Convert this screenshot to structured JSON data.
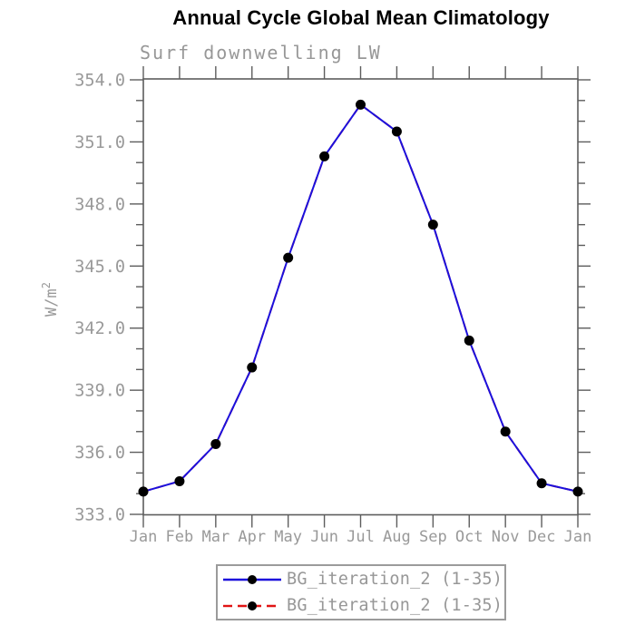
{
  "chart_data": {
    "type": "line",
    "title": "Annual Cycle Global Mean Climatology",
    "subtitle": "Surf downwelling LW",
    "ylabel": "W/m2",
    "ylabel_parts": {
      "base": "W/m",
      "exp": "2"
    },
    "categories": [
      "Jan",
      "Feb",
      "Mar",
      "Apr",
      "May",
      "Jun",
      "Jul",
      "Aug",
      "Sep",
      "Oct",
      "Nov",
      "Dec",
      "Jan"
    ],
    "series": [
      {
        "name": "BG_iteration_2 (1-35)",
        "color": "#e01414",
        "line_style": "dashed",
        "values": [
          334.1,
          334.6,
          336.4,
          340.1,
          345.4,
          350.3,
          352.8,
          351.5,
          347.0,
          341.4,
          337.0,
          334.5,
          334.1
        ]
      },
      {
        "name": "BG_iteration_2 (1-35)",
        "color": "#1c10dc",
        "line_style": "solid",
        "values": [
          334.1,
          334.6,
          336.4,
          340.1,
          345.4,
          350.3,
          352.8,
          351.5,
          347.0,
          341.4,
          337.0,
          334.5,
          334.1
        ]
      }
    ],
    "marker": {
      "shape": "circle",
      "color": "#000000"
    },
    "ylim": [
      333,
      354
    ],
    "ytick_major_step": 3,
    "ytick_minor_step": 1,
    "ytick_labels": [
      "333.0",
      "336.0",
      "339.0",
      "342.0",
      "345.0",
      "348.0",
      "351.0",
      "354.0"
    ],
    "grid": false,
    "tick_direction": "out",
    "legend": {
      "position": "bottom",
      "entries": [
        {
          "label": "BG_iteration_2 (1-35)",
          "color": "#1c10dc",
          "line_style": "solid",
          "marker": "circle"
        },
        {
          "label": "BG_iteration_2 (1-35)",
          "color": "#e01414",
          "line_style": "dashed",
          "marker": "circle"
        }
      ]
    },
    "colors": {
      "axis": "#5d5d5d",
      "tick_label": "#999999",
      "title": "#000000",
      "subtitle": "#979797",
      "background": "#ffffff"
    }
  }
}
